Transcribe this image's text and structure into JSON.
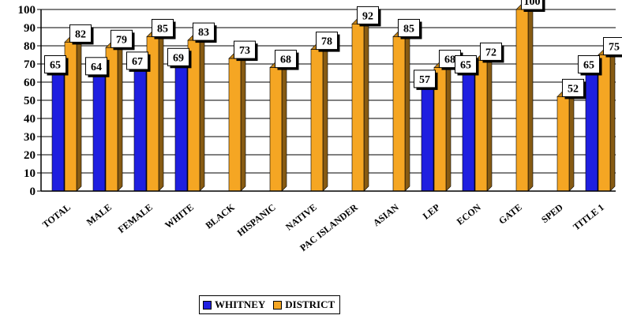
{
  "chart_data": {
    "type": "bar",
    "title": "",
    "xlabel": "",
    "ylabel": "",
    "ylim": [
      0,
      100
    ],
    "yticks": [
      0,
      10,
      20,
      30,
      40,
      50,
      60,
      70,
      80,
      90,
      100
    ],
    "categories": [
      "TOTAL",
      "MALE",
      "FEMALE",
      "WHITE",
      "BLACK",
      "HISPANIC",
      "NATIVE",
      "PAC ISLANDER",
      "ASIAN",
      "LEP",
      "ECON",
      "GATE",
      "SPED",
      "TITLE 1"
    ],
    "series": [
      {
        "name": "WHITNEY",
        "color": "#1f1fe0",
        "values": [
          65,
          64,
          67,
          69,
          null,
          null,
          null,
          null,
          null,
          57,
          65,
          null,
          null,
          65
        ]
      },
      {
        "name": "DISTRICT",
        "color": "#f5a623",
        "values": [
          82,
          79,
          85,
          83,
          73,
          68,
          78,
          92,
          85,
          68,
          72,
          100,
          52,
          75
        ]
      }
    ],
    "grid": true,
    "legend_position": "bottom"
  }
}
